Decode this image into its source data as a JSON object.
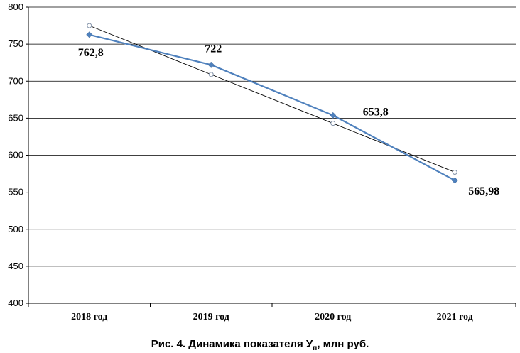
{
  "chart_data": {
    "type": "line",
    "categories": [
      "2018 год",
      "2019 год",
      "2020 год",
      "2021 год"
    ],
    "series": [
      {
        "values": [
          762.8,
          722,
          653.8,
          565.98
        ],
        "color": "#4f81bd",
        "marker": "diamond"
      },
      {
        "values": [
          775,
          709,
          643,
          577
        ],
        "color": "#000000",
        "marker": "open-circle",
        "style": "trend"
      }
    ],
    "data_labels": [
      "762,8",
      "722",
      "653,8",
      "565,98"
    ],
    "yticks": [
      400,
      450,
      500,
      550,
      600,
      650,
      700,
      750,
      800
    ],
    "ylim": [
      400,
      800
    ],
    "grid": true,
    "legend": "none"
  },
  "caption": {
    "prefix": "Рис. 4. Динамика показателя У",
    "subscript": "п",
    "suffix": ", млн руб."
  }
}
